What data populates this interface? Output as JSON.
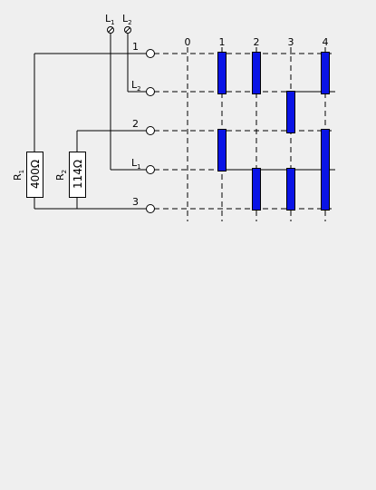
{
  "terminals": {
    "l1": {
      "letter": "L",
      "sub": "1"
    },
    "l2": {
      "letter": "L",
      "sub": "2"
    }
  },
  "rows": [
    {
      "label": "1",
      "letter": "",
      "sub": ""
    },
    {
      "label": "",
      "letter": "L",
      "sub": "2"
    },
    {
      "label": "2",
      "letter": "",
      "sub": ""
    },
    {
      "label": "",
      "letter": "L",
      "sub": "1"
    },
    {
      "label": "3",
      "letter": "",
      "sub": ""
    }
  ],
  "positions": [
    "0",
    "1",
    "2",
    "3",
    "4"
  ],
  "resistors": [
    {
      "letter": "R",
      "sub": "1",
      "value": "400Ω"
    },
    {
      "letter": "R",
      "sub": "2",
      "value": "114Ω"
    }
  ],
  "contacts": [
    {
      "position": "1",
      "rows": [
        1,
        2
      ]
    },
    {
      "position": "1",
      "rows": [
        3,
        4
      ]
    },
    {
      "position": "2",
      "rows": [
        1,
        2
      ]
    },
    {
      "position": "2",
      "rows": [
        4,
        5
      ]
    },
    {
      "position": "3",
      "rows": [
        2,
        3
      ]
    },
    {
      "position": "3",
      "rows": [
        4,
        5
      ]
    },
    {
      "position": "4",
      "rows": [
        1,
        2
      ]
    },
    {
      "position": "4",
      "rows": [
        3,
        5
      ]
    }
  ],
  "colors": {
    "contact": "#0a14e6",
    "line": "#000000",
    "background": "#efefef"
  }
}
